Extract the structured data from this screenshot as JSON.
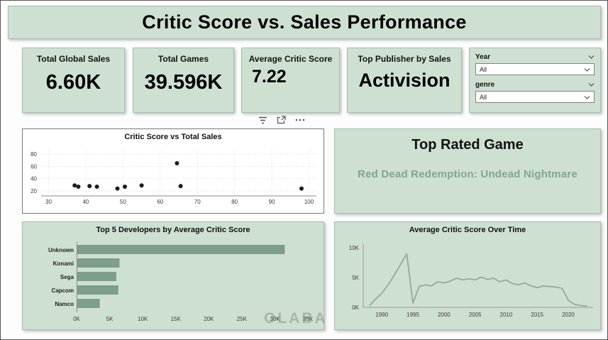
{
  "title": "Critic Score vs. Sales Performance",
  "watermark": "OLABA",
  "kpis": [
    {
      "label": "Total Global Sales",
      "value": "6.60K"
    },
    {
      "label": "Total Games",
      "value": "39.596K"
    },
    {
      "label": "Average Critic Score",
      "value": "7.22"
    },
    {
      "label": "Top Publisher by Sales",
      "value": "Activision"
    }
  ],
  "filters": {
    "year": {
      "label": "Year",
      "value": "All"
    },
    "genre": {
      "label": "genre",
      "value": "All"
    }
  },
  "top_rated": {
    "title": "Top Rated Game",
    "game": "Red Dead Redemption: Undead Nightmare"
  },
  "colors": {
    "panel_green": "#cee0d2",
    "panel_border": "#a4bfac",
    "bar_fill": "#7d9e88",
    "accent_text": "#83a58d",
    "line_stroke": "#97a89b",
    "dot_fill": "#1d1d1d"
  },
  "chart_data": [
    {
      "id": "scatter",
      "type": "scatter",
      "title": "Critic Score vs Total Sales",
      "xlabel": "",
      "ylabel": "",
      "xlim": [
        28,
        102
      ],
      "ylim": [
        12,
        88
      ],
      "xticks": [
        30,
        40,
        50,
        60,
        70,
        80,
        90,
        100
      ],
      "yticks": [
        20,
        40,
        60,
        80
      ],
      "grid": "dotted",
      "points": [
        [
          37,
          29
        ],
        [
          38,
          27
        ],
        [
          41,
          28
        ],
        [
          43,
          27
        ],
        [
          48.5,
          24
        ],
        [
          50.5,
          27
        ],
        [
          55,
          29
        ],
        [
          64.5,
          65
        ],
        [
          65.5,
          28
        ],
        [
          98,
          24
        ]
      ]
    },
    {
      "id": "bars",
      "type": "bar",
      "title": "Top 5 Developers by Average Critic Score",
      "orientation": "horizontal",
      "categories": [
        "Unknown",
        "Konami",
        "Sega",
        "Capcom",
        "Namco"
      ],
      "values": [
        31.5,
        6.5,
        6.0,
        6.3,
        3.5
      ],
      "unit": "K",
      "xlim": [
        0,
        35
      ],
      "xticks": [
        0,
        5,
        10,
        15,
        20,
        25,
        30,
        35
      ]
    },
    {
      "id": "line",
      "type": "line",
      "title": "Average Critic Score Over Time",
      "xlim": [
        1987,
        2024
      ],
      "ylim": [
        0,
        10.5
      ],
      "xticks": [
        1990,
        1995,
        2000,
        2005,
        2010,
        2015,
        2020
      ],
      "yticks": [
        0,
        5,
        10
      ],
      "points": [
        [
          1988,
          0.3
        ],
        [
          1989,
          1.4
        ],
        [
          1990,
          2.4
        ],
        [
          1991,
          3.8
        ],
        [
          1992,
          5.4
        ],
        [
          1993,
          7.2
        ],
        [
          1994,
          9.0
        ],
        [
          1995,
          0.7
        ],
        [
          1996,
          3.5
        ],
        [
          1997,
          3.8
        ],
        [
          1998,
          3.6
        ],
        [
          1999,
          4.3
        ],
        [
          2000,
          4.1
        ],
        [
          2001,
          4.4
        ],
        [
          2002,
          4.9
        ],
        [
          2003,
          4.6
        ],
        [
          2004,
          4.8
        ],
        [
          2005,
          4.6
        ],
        [
          2006,
          5.1
        ],
        [
          2007,
          4.7
        ],
        [
          2008,
          4.9
        ],
        [
          2009,
          4.3
        ],
        [
          2010,
          4.6
        ],
        [
          2011,
          4.0
        ],
        [
          2012,
          3.8
        ],
        [
          2013,
          4.1
        ],
        [
          2014,
          3.6
        ],
        [
          2015,
          3.3
        ],
        [
          2016,
          3.6
        ],
        [
          2017,
          3.5
        ],
        [
          2018,
          3.4
        ],
        [
          2019,
          3.2
        ],
        [
          2020,
          1.2
        ],
        [
          2021,
          0.5
        ],
        [
          2022,
          0.3
        ],
        [
          2023,
          0.2
        ]
      ]
    }
  ]
}
